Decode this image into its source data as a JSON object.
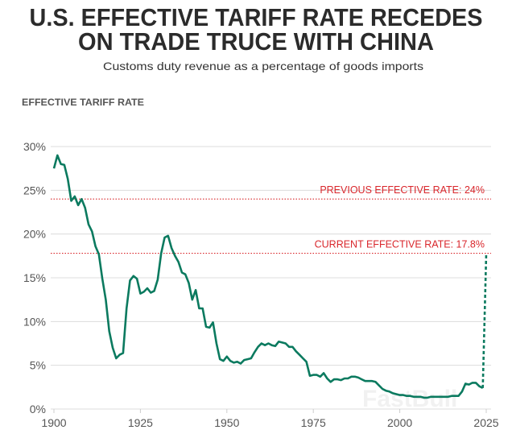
{
  "chart_data": {
    "type": "line",
    "title": "U.S. EFFECTIVE TARIFF RATE RECEDES",
    "title_line2": "ON TRADE TRUCE WITH CHINA",
    "subtitle": "Customs duty revenue as a percentage of goods imports",
    "ylabel": "EFFECTIVE TARIFF RATE",
    "xlabel": "",
    "xlim": [
      1900,
      2025
    ],
    "ylim": [
      0,
      30
    ],
    "x_ticks": [
      1900,
      1925,
      1950,
      1975,
      2000,
      2025
    ],
    "x_tick_labels": [
      "1900",
      "1925",
      "1950",
      "1975",
      "2000",
      "2025"
    ],
    "y_ticks": [
      0,
      5,
      10,
      15,
      20,
      25,
      30
    ],
    "y_tick_labels": [
      "0%",
      "5%",
      "10%",
      "15%",
      "20%",
      "25%",
      "30%"
    ],
    "grid": "horizontal",
    "line_color": "#0b7a5f",
    "series": [
      {
        "x": [
          1900,
          1901,
          1902,
          1903,
          1904,
          1905,
          1906,
          1907,
          1908,
          1909,
          1910,
          1911,
          1912,
          1913,
          1914,
          1915,
          1916,
          1917,
          1918,
          1919,
          1920,
          1921,
          1922,
          1923,
          1924,
          1925,
          1926,
          1927,
          1928,
          1929,
          1930,
          1931,
          1932,
          1933,
          1934,
          1935,
          1936,
          1937,
          1938,
          1939,
          1940,
          1941,
          1942,
          1943,
          1944,
          1945,
          1946,
          1947,
          1948,
          1949,
          1950,
          1951,
          1952,
          1953,
          1954,
          1955,
          1956,
          1957,
          1958,
          1959,
          1960,
          1961,
          1962,
          1963,
          1964,
          1965,
          1966,
          1967,
          1968,
          1969,
          1970,
          1971,
          1972,
          1973,
          1974,
          1975,
          1976,
          1977,
          1978,
          1979,
          1980,
          1981,
          1982,
          1983,
          1984,
          1985,
          1986,
          1987,
          1988,
          1989,
          1990,
          1991,
          1992,
          1993,
          1994,
          1995,
          1996,
          1997,
          1998,
          1999,
          2000,
          2001,
          2002,
          2003,
          2004,
          2005,
          2006,
          2007,
          2008,
          2009,
          2010,
          2011,
          2012,
          2013,
          2014,
          2015,
          2016,
          2017,
          2018,
          2019,
          2020,
          2021,
          2022,
          2023,
          2024
        ],
        "values": [
          27.5,
          29.0,
          28.0,
          27.9,
          26.3,
          23.8,
          24.3,
          23.3,
          24.0,
          23.0,
          21.1,
          20.3,
          18.6,
          17.7,
          14.9,
          12.5,
          8.9,
          7.0,
          5.8,
          6.2,
          6.4,
          11.5,
          14.7,
          15.2,
          14.9,
          13.2,
          13.4,
          13.8,
          13.3,
          13.5,
          14.8,
          17.8,
          19.6,
          19.8,
          18.4,
          17.5,
          16.8,
          15.6,
          15.4,
          14.4,
          12.5,
          13.6,
          11.5,
          11.5,
          9.4,
          9.3,
          9.9,
          7.5,
          5.7,
          5.5,
          6.0,
          5.5,
          5.3,
          5.4,
          5.2,
          5.6,
          5.7,
          5.8,
          6.5,
          7.1,
          7.5,
          7.3,
          7.5,
          7.3,
          7.2,
          7.7,
          7.6,
          7.5,
          7.1,
          7.1,
          6.6,
          6.2,
          5.8,
          5.4,
          3.8,
          3.9,
          3.9,
          3.7,
          4.1,
          3.5,
          3.1,
          3.4,
          3.4,
          3.3,
          3.5,
          3.5,
          3.7,
          3.7,
          3.6,
          3.4,
          3.2,
          3.2,
          3.2,
          3.1,
          2.7,
          2.3,
          2.1,
          2.0,
          1.8,
          1.7,
          1.6,
          1.6,
          1.5,
          1.5,
          1.4,
          1.4,
          1.4,
          1.3,
          1.3,
          1.4,
          1.4,
          1.4,
          1.4,
          1.4,
          1.4,
          1.5,
          1.5,
          1.5,
          2.0,
          2.9,
          2.8,
          3.0,
          3.0,
          2.6,
          2.4
        ],
        "style": "solid"
      },
      {
        "x": [
          2024,
          2025
        ],
        "values": [
          2.4,
          17.8
        ],
        "style": "dashed"
      }
    ],
    "reference_lines": [
      {
        "value": 24,
        "label": "PREVIOUS EFFECTIVE RATE: 24%",
        "color": "#d9262b",
        "style": "dotted"
      },
      {
        "value": 17.8,
        "label": "CURRENT EFFECTIVE RATE: 17.8%",
        "color": "#d9262b",
        "style": "dotted"
      }
    ]
  },
  "watermark": "FastBull"
}
